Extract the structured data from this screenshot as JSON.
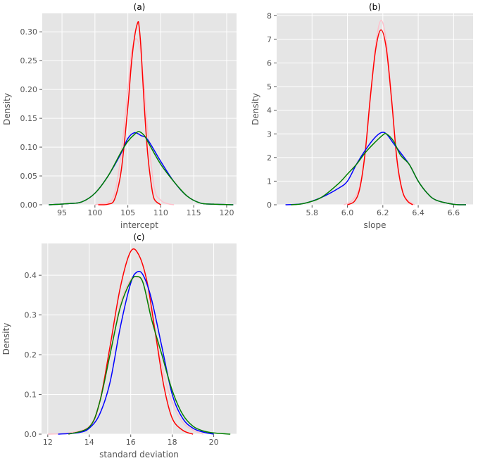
{
  "chart_data": [
    {
      "type": "line",
      "title": "(a)",
      "xlabel": "intercept",
      "ylabel": "Density",
      "xlim": [
        92,
        121.5
      ],
      "ylim": [
        0,
        0.332
      ],
      "xticks": [
        "95",
        "100",
        "105",
        "110",
        "115",
        "120"
      ],
      "xtick_values": [
        95,
        100,
        105,
        110,
        115,
        120
      ],
      "yticks": [
        "0.00",
        "0.05",
        "0.10",
        "0.15",
        "0.20",
        "0.25",
        "0.30"
      ],
      "ytick_values": [
        0,
        0.05,
        0.1,
        0.15,
        0.2,
        0.25,
        0.3
      ],
      "series": [
        {
          "name": "pink",
          "color": "#ffc0cb",
          "x": [
            100,
            101,
            102,
            103,
            104,
            105,
            105.5,
            106,
            106.5,
            107,
            107.5,
            108,
            109,
            110,
            111,
            112
          ],
          "y": [
            0,
            0.002,
            0.004,
            0.02,
            0.09,
            0.2,
            0.26,
            0.285,
            0.285,
            0.26,
            0.2,
            0.13,
            0.03,
            0.008,
            0.002,
            0
          ]
        },
        {
          "name": "red",
          "color": "#ff0000",
          "x": [
            100.5,
            102,
            103,
            104,
            105,
            105.5,
            106,
            106.5,
            106.7,
            107,
            107.5,
            108,
            108.5,
            109,
            110
          ],
          "y": [
            0,
            0.001,
            0.01,
            0.06,
            0.17,
            0.24,
            0.29,
            0.316,
            0.31,
            0.27,
            0.17,
            0.09,
            0.04,
            0.01,
            0
          ]
        },
        {
          "name": "blue",
          "color": "#0000ff",
          "x": [
            93,
            96,
            98,
            100,
            102,
            104,
            105,
            106,
            107,
            108,
            110,
            112,
            114,
            116,
            118,
            121
          ],
          "y": [
            0,
            0.002,
            0.005,
            0.02,
            0.05,
            0.09,
            0.115,
            0.125,
            0.12,
            0.113,
            0.075,
            0.04,
            0.015,
            0.003,
            0.001,
            0
          ]
        },
        {
          "name": "green",
          "color": "#008000",
          "x": [
            93,
            96,
            98,
            100,
            102,
            104,
            105,
            106,
            106.7,
            107.5,
            108,
            110,
            112,
            114,
            116,
            118,
            121
          ],
          "y": [
            0,
            0.002,
            0.005,
            0.02,
            0.05,
            0.092,
            0.11,
            0.122,
            0.127,
            0.12,
            0.11,
            0.07,
            0.04,
            0.015,
            0.003,
            0.001,
            0
          ]
        }
      ]
    },
    {
      "type": "line",
      "title": "(b)",
      "xlabel": "slope",
      "ylabel": "Density",
      "xlim": [
        5.6,
        6.71
      ],
      "ylim": [
        0,
        8.1
      ],
      "xticks": [
        "5.8",
        "6.0",
        "6.2",
        "6.4",
        "6.6"
      ],
      "xtick_values": [
        5.8,
        6.0,
        6.2,
        6.4,
        6.6
      ],
      "yticks": [
        "0",
        "1",
        "2",
        "3",
        "4",
        "5",
        "6",
        "7",
        "8"
      ],
      "ytick_values": [
        0,
        1,
        2,
        3,
        4,
        5,
        6,
        7,
        8
      ],
      "series": [
        {
          "name": "pink",
          "color": "#ffc0cb",
          "x": [
            5.98,
            6.03,
            6.07,
            6.1,
            6.13,
            6.16,
            6.19,
            6.22,
            6.25,
            6.28,
            6.31,
            6.34,
            6.38
          ],
          "y": [
            0,
            0.2,
            0.8,
            2.2,
            4.5,
            6.8,
            7.8,
            6.9,
            4.5,
            1.8,
            0.6,
            0.2,
            0
          ]
        },
        {
          "name": "red",
          "color": "#ff0000",
          "x": [
            6.0,
            6.04,
            6.07,
            6.1,
            6.13,
            6.16,
            6.19,
            6.22,
            6.25,
            6.28,
            6.31,
            6.34,
            6.37
          ],
          "y": [
            0,
            0.15,
            0.7,
            2.2,
            4.6,
            6.6,
            7.4,
            6.6,
            4.4,
            1.9,
            0.6,
            0.15,
            0
          ]
        },
        {
          "name": "blue",
          "color": "#0000ff",
          "x": [
            5.65,
            5.75,
            5.85,
            5.95,
            6.0,
            6.05,
            6.1,
            6.15,
            6.19,
            6.22,
            6.26,
            6.3,
            6.35,
            6.4,
            6.45,
            6.5,
            6.6,
            6.67
          ],
          "y": [
            0,
            0.05,
            0.3,
            0.7,
            1.0,
            1.7,
            2.3,
            2.8,
            3.05,
            3.0,
            2.6,
            2.2,
            1.7,
            1.0,
            0.5,
            0.2,
            0.02,
            0
          ]
        },
        {
          "name": "green",
          "color": "#008000",
          "x": [
            5.68,
            5.75,
            5.85,
            5.95,
            6.0,
            6.05,
            6.1,
            6.15,
            6.2,
            6.22,
            6.26,
            6.3,
            6.35,
            6.4,
            6.45,
            6.5,
            6.6,
            6.67
          ],
          "y": [
            0,
            0.05,
            0.3,
            0.9,
            1.3,
            1.7,
            2.2,
            2.6,
            2.95,
            3.0,
            2.7,
            2.1,
            1.7,
            1.0,
            0.5,
            0.2,
            0.02,
            0
          ]
        }
      ]
    },
    {
      "type": "line",
      "title": "(c)",
      "xlabel": "standard deviation",
      "ylabel": "Density",
      "xlim": [
        11.7,
        21.1
      ],
      "ylim": [
        0,
        0.48
      ],
      "xticks": [
        "12",
        "14",
        "16",
        "18",
        "20"
      ],
      "xtick_values": [
        12,
        14,
        16,
        18,
        20
      ],
      "yticks": [
        "0.0",
        "0.1",
        "0.2",
        "0.3",
        "0.4"
      ],
      "ytick_values": [
        0,
        0.1,
        0.2,
        0.3,
        0.4
      ],
      "series": [
        {
          "name": "pink",
          "color": "#ffc0cb",
          "x": [
            12,
            13,
            14,
            14.5,
            15,
            15.5,
            16,
            16.3,
            16.6,
            17,
            17.5,
            18,
            18.5,
            19,
            19.5
          ],
          "y": [
            0,
            0.003,
            0.02,
            0.08,
            0.2,
            0.33,
            0.39,
            0.395,
            0.38,
            0.3,
            0.17,
            0.08,
            0.03,
            0.01,
            0
          ]
        },
        {
          "name": "red",
          "color": "#ff0000",
          "x": [
            13,
            14,
            14.5,
            15,
            15.5,
            16,
            16.4,
            16.8,
            17.2,
            17.6,
            18,
            18.5,
            19
          ],
          "y": [
            0,
            0.018,
            0.08,
            0.22,
            0.37,
            0.46,
            0.45,
            0.38,
            0.25,
            0.12,
            0.04,
            0.01,
            0
          ]
        },
        {
          "name": "blue",
          "color": "#0000ff",
          "x": [
            12.5,
            13.5,
            14,
            14.5,
            15,
            15.5,
            16,
            16.3,
            16.6,
            17,
            17.5,
            18,
            18.5,
            19,
            19.5,
            20
          ],
          "y": [
            0,
            0.004,
            0.015,
            0.05,
            0.13,
            0.27,
            0.38,
            0.408,
            0.4,
            0.34,
            0.22,
            0.1,
            0.04,
            0.015,
            0.005,
            0
          ]
        },
        {
          "name": "green",
          "color": "#008000",
          "x": [
            13,
            14,
            14.5,
            15,
            15.5,
            16,
            16.3,
            16.6,
            17,
            17.5,
            18,
            18.5,
            19,
            19.5,
            20,
            20.8
          ],
          "y": [
            0,
            0.018,
            0.08,
            0.2,
            0.32,
            0.385,
            0.397,
            0.38,
            0.29,
            0.2,
            0.11,
            0.05,
            0.02,
            0.008,
            0.003,
            0
          ]
        }
      ]
    }
  ]
}
